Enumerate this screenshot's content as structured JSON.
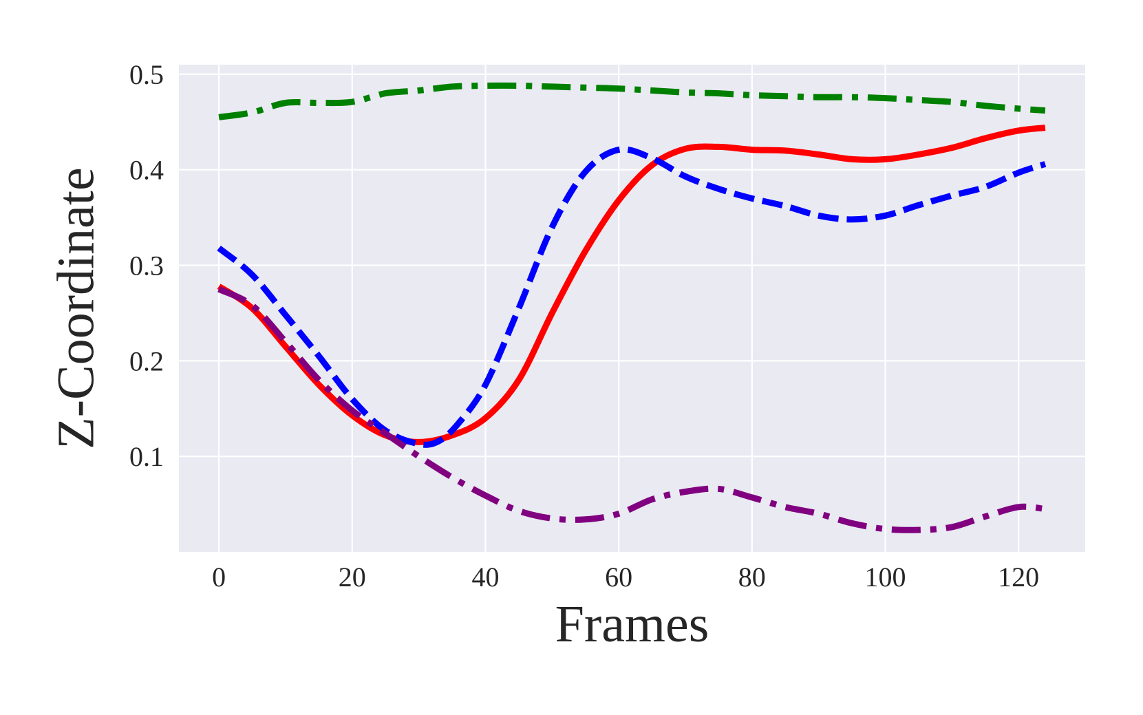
{
  "chart_data": {
    "type": "line",
    "xlabel": "Frames",
    "ylabel": "Z-Coordinate",
    "xlim": [
      -6,
      130
    ],
    "ylim": [
      0.0,
      0.51
    ],
    "x_ticks": [
      0,
      20,
      40,
      60,
      80,
      100,
      120
    ],
    "y_ticks": [
      0.1,
      0.2,
      0.3,
      0.4,
      0.5
    ],
    "grid": true,
    "legend": "none",
    "background": "#eaeaf2",
    "series": [
      {
        "color": "#008000",
        "style": "dashdot",
        "x": [
          0,
          5,
          10,
          15,
          20,
          25,
          30,
          35,
          40,
          45,
          50,
          55,
          60,
          65,
          70,
          75,
          80,
          85,
          90,
          95,
          100,
          105,
          110,
          115,
          120,
          124
        ],
        "y": [
          0.455,
          0.46,
          0.47,
          0.47,
          0.471,
          0.48,
          0.483,
          0.487,
          0.488,
          0.488,
          0.487,
          0.486,
          0.485,
          0.483,
          0.481,
          0.48,
          0.478,
          0.477,
          0.476,
          0.476,
          0.475,
          0.473,
          0.471,
          0.467,
          0.464,
          0.462
        ]
      },
      {
        "color": "#ff0000",
        "style": "solid",
        "x": [
          0,
          5,
          10,
          15,
          20,
          25,
          30,
          35,
          40,
          45,
          50,
          55,
          60,
          65,
          70,
          75,
          80,
          85,
          90,
          95,
          100,
          105,
          110,
          115,
          120,
          124
        ],
        "y": [
          0.278,
          0.255,
          0.215,
          0.175,
          0.143,
          0.122,
          0.115,
          0.122,
          0.14,
          0.18,
          0.25,
          0.315,
          0.368,
          0.405,
          0.422,
          0.424,
          0.421,
          0.42,
          0.416,
          0.411,
          0.411,
          0.416,
          0.423,
          0.433,
          0.441,
          0.444
        ]
      },
      {
        "color": "#0000ff",
        "style": "dashed",
        "x": [
          0,
          5,
          10,
          15,
          20,
          25,
          30,
          33,
          36,
          40,
          45,
          50,
          55,
          60,
          65,
          70,
          75,
          80,
          85,
          90,
          95,
          100,
          105,
          110,
          115,
          120,
          124
        ],
        "y": [
          0.318,
          0.29,
          0.248,
          0.205,
          0.16,
          0.127,
          0.113,
          0.116,
          0.135,
          0.175,
          0.255,
          0.34,
          0.398,
          0.421,
          0.412,
          0.393,
          0.38,
          0.37,
          0.362,
          0.352,
          0.348,
          0.352,
          0.363,
          0.373,
          0.382,
          0.397,
          0.406
        ]
      },
      {
        "color": "#800080",
        "style": "dashdot",
        "x": [
          0,
          5,
          10,
          15,
          20,
          25,
          30,
          35,
          40,
          45,
          50,
          55,
          60,
          65,
          70,
          75,
          80,
          85,
          90,
          95,
          100,
          105,
          110,
          115,
          120,
          124
        ],
        "y": [
          0.275,
          0.258,
          0.22,
          0.18,
          0.148,
          0.124,
          0.1,
          0.078,
          0.059,
          0.043,
          0.035,
          0.034,
          0.04,
          0.055,
          0.063,
          0.066,
          0.057,
          0.047,
          0.04,
          0.03,
          0.024,
          0.023,
          0.026,
          0.037,
          0.047,
          0.045
        ]
      }
    ]
  }
}
